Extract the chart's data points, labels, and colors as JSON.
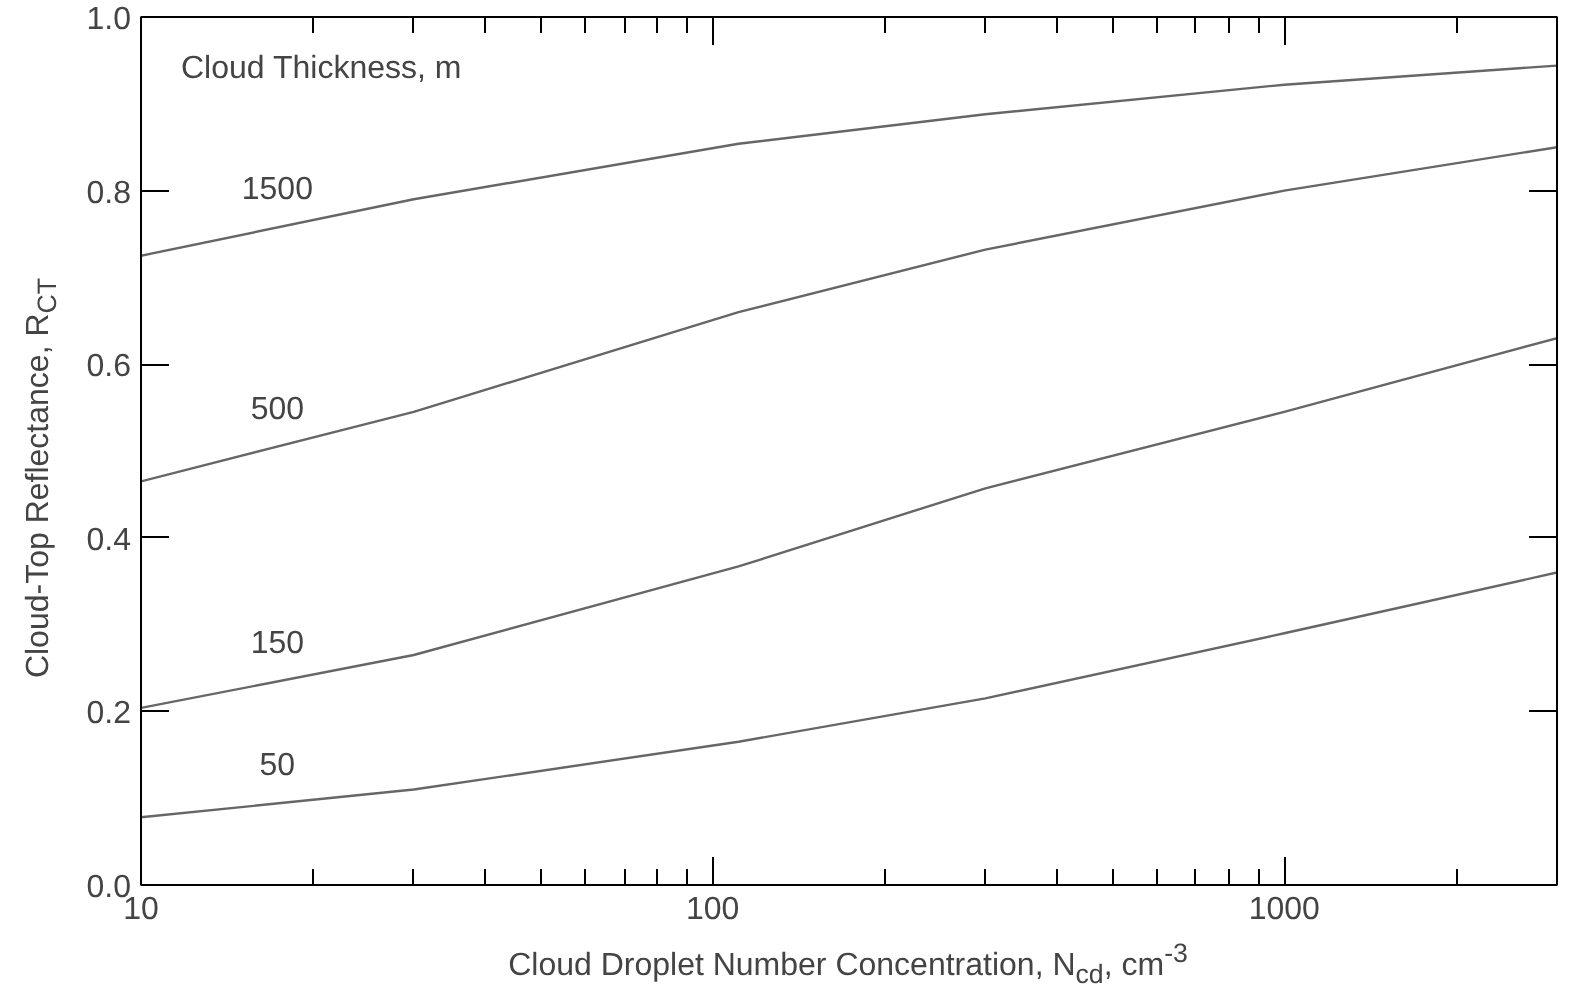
{
  "chart_data": {
    "type": "line",
    "xlabel": "Cloud Droplet Number Concentration, N$_{cd}$, cm$^{-3}$",
    "ylabel": "Cloud-Top Reflectance, R$_{CT}$",
    "legend_title": "Cloud Thickness, m",
    "log": "x",
    "x": [
      10,
      30,
      111,
      300,
      1000,
      3000
    ],
    "series": [
      {
        "name": "1500",
        "color": "#666666",
        "values": [
          0.725,
          0.79,
          0.854,
          0.888,
          0.922,
          0.944
        ]
      },
      {
        "name": "500",
        "color": "#666666",
        "values": [
          0.465,
          0.545,
          0.66,
          0.732,
          0.8,
          0.85
        ]
      },
      {
        "name": "150",
        "color": "#666666",
        "values": [
          0.204,
          0.265,
          0.367,
          0.457,
          0.545,
          0.63
        ]
      },
      {
        "name": "50",
        "color": "#666666",
        "values": [
          0.078,
          0.11,
          0.165,
          0.215,
          0.29,
          0.36
        ]
      }
    ],
    "xlim": [
      10,
      3000
    ],
    "ylim": [
      0,
      1
    ],
    "xticks": [
      10,
      {
        "value": 20,
        "label": null
      },
      {
        "value": 30,
        "label": null
      },
      {
        "value": 40,
        "label": null
      },
      {
        "value": 50,
        "label": null
      },
      {
        "value": 60,
        "label": null
      },
      {
        "value": 70,
        "label": null
      },
      {
        "value": 80,
        "label": null
      },
      {
        "value": 90,
        "label": null
      },
      100,
      {
        "value": 200,
        "label": null
      },
      {
        "value": 300,
        "label": null
      },
      {
        "value": 400,
        "label": null
      },
      {
        "value": 500,
        "label": null
      },
      {
        "value": 600,
        "label": null
      },
      {
        "value": 700,
        "label": null
      },
      {
        "value": 800,
        "label": null
      },
      {
        "value": 900,
        "label": null
      },
      1000,
      {
        "value": 2000,
        "label": null
      }
    ],
    "yticks": [
      {
        "value": 0,
        "label": "0.0"
      },
      {
        "value": 0.2,
        "label": "0.2"
      },
      {
        "value": 0.4,
        "label": "0.4"
      },
      {
        "value": 0.6,
        "label": "0.6"
      },
      {
        "value": 0.8,
        "label": "0.8"
      },
      {
        "value": 1,
        "label": "1.0"
      }
    ],
    "grid": false,
    "marker": "none",
    "line_style": "solid"
  }
}
